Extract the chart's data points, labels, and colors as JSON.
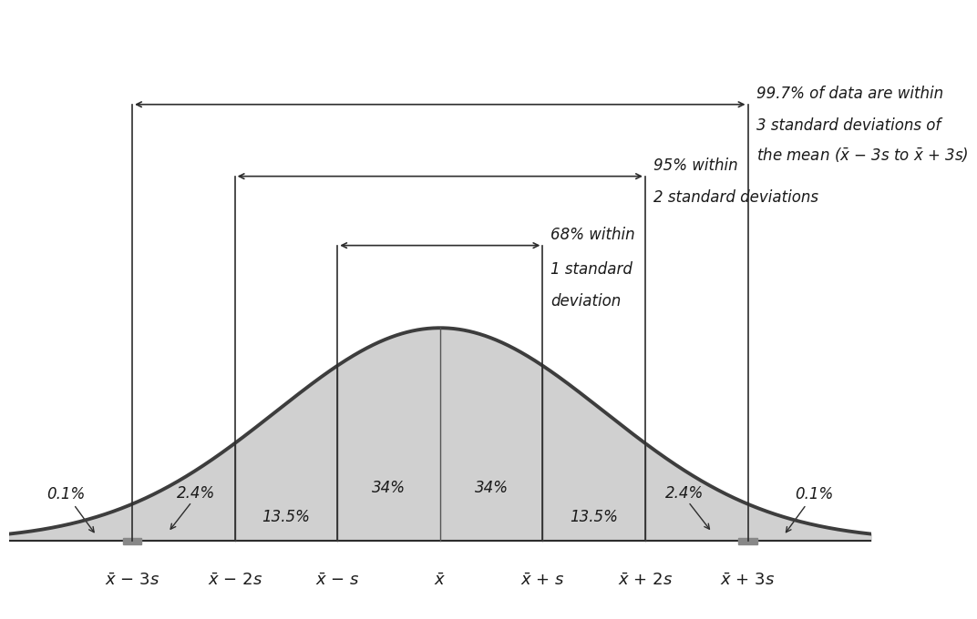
{
  "background_color": "#ffffff",
  "curve_color": "#3d3d3d",
  "fill_color": "#d0d0d0",
  "fill_alpha": 1.0,
  "curve_linewidth": 2.8,
  "percentages": {
    "0.1_left": "0.1%",
    "2.4_left": "2.4%",
    "13.5_left": "13.5%",
    "34_left": "34%",
    "34_right": "34%",
    "13.5_right": "13.5%",
    "2.4_right": "2.4%",
    "0.1_right": "0.1%"
  },
  "annot_68_line1": "68% within ",
  "annot_68_line2": "1 standard",
  "annot_68_line3": "deviation",
  "annot_95_line1": "95% within –––––––––",
  "annot_95_line1_text": "95% within",
  "annot_95_line2": "2 standard deviations",
  "annot_997_line1": "99.7% of data are within ––––––––",
  "annot_997_line1_text": "99.7% of data are within",
  "annot_997_line2": "3 standard deviations of",
  "annot_997_line3_text": "the mean (",
  "arrow_color": "#2d2d2d",
  "line_color": "#2d2d2d",
  "text_color": "#1a1a1a",
  "vline_color": "#555555",
  "font_size_labels": 13,
  "font_size_pct": 12,
  "font_size_annot": 12,
  "sigma": 1.0,
  "xlim": [
    -4.2,
    4.2
  ],
  "ylim": [
    -0.13,
    1.0
  ]
}
